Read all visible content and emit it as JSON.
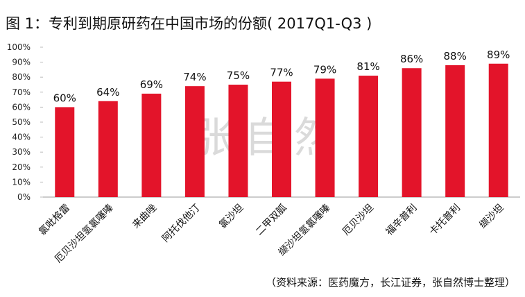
{
  "title": "图 1：专利到期原研药在中国市场的份额( 2017Q1-Q3 )",
  "source": "（资料来源：医药魔方，长江证券，张自然博士整理）",
  "watermark": "张自然",
  "chart_data": {
    "type": "bar",
    "title": "图 1：专利到期原研药在中国市场的份额( 2017Q1-Q3 )",
    "categories": [
      "氯吡格雷",
      "厄贝沙坦氢氯噻嗪",
      "来曲唑",
      "阿托伐他汀",
      "氯沙坦",
      "二甲双胍",
      "缬沙坦氢氯噻嗪",
      "厄贝沙坦",
      "福辛普利",
      "卡托普利",
      "缬沙坦"
    ],
    "values": [
      60,
      64,
      69,
      74,
      75,
      77,
      79,
      81,
      86,
      88,
      89
    ],
    "data_labels": [
      "60%",
      "64%",
      "69%",
      "74%",
      "75%",
      "77%",
      "79%",
      "81%",
      "86%",
      "88%",
      "89%"
    ],
    "ylim": [
      0,
      100
    ],
    "yticks": [
      "0%",
      "10%",
      "20%",
      "30%",
      "40%",
      "50%",
      "60%",
      "70%",
      "80%",
      "90%",
      "100%"
    ],
    "xlabel": "",
    "ylabel": "",
    "grid": false,
    "color": "#e3142a"
  }
}
